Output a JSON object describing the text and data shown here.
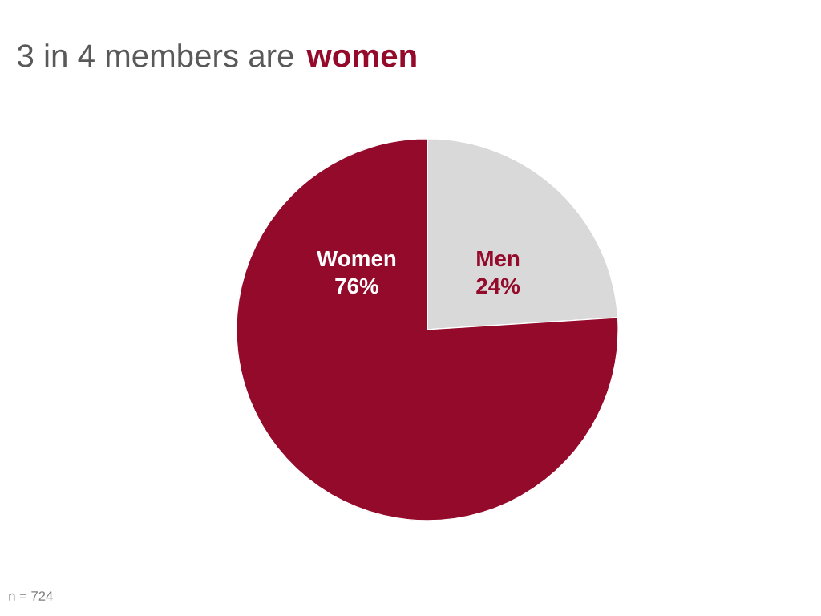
{
  "chart_data": {
    "type": "pie",
    "title": "3 in 4 members are women",
    "categories": [
      "Men",
      "Women"
    ],
    "values": [
      24,
      76
    ],
    "colors": [
      "#d9d9d9",
      "#940a2b"
    ],
    "value_labels": [
      "24%",
      "76%"
    ],
    "legend": false,
    "annotations": [
      "n = 724"
    ]
  }
}
